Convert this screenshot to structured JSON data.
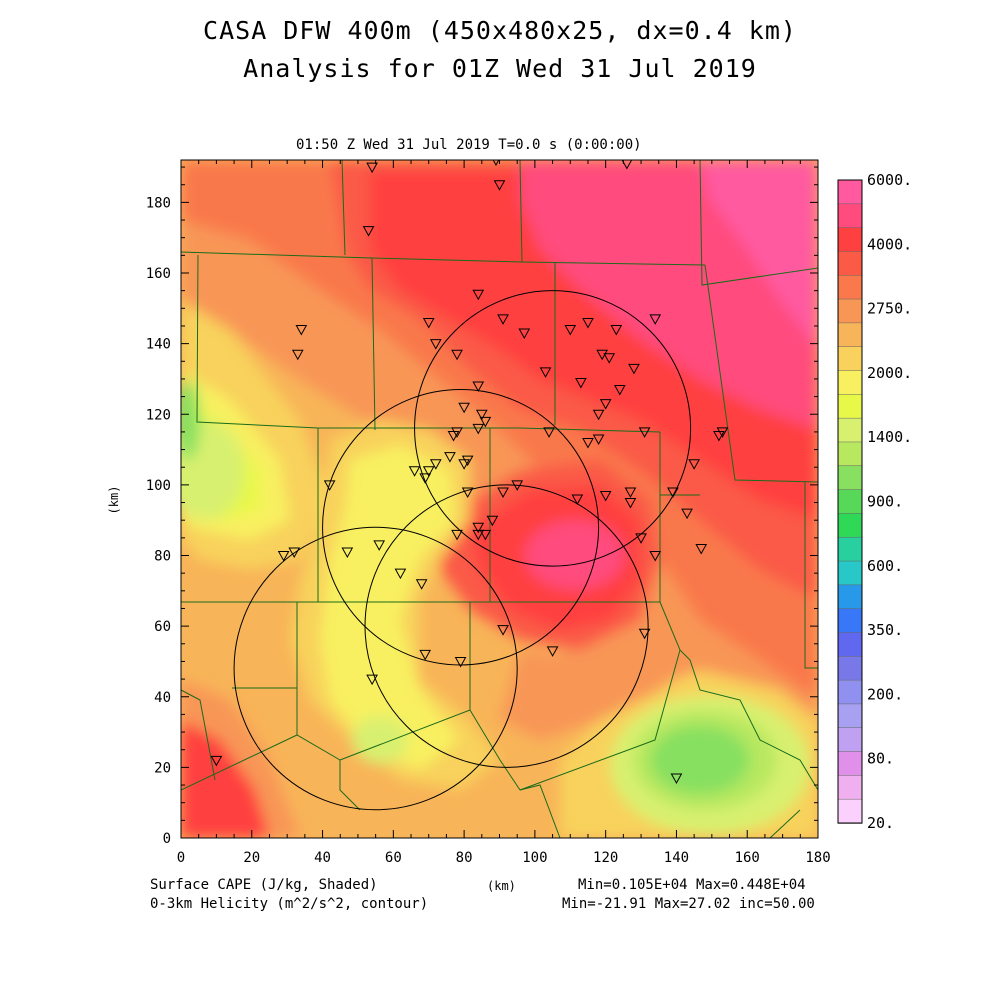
{
  "title_line1": "CASA DFW 400m (450x480x25, dx=0.4 km)",
  "title_line2": "Analysis for 01Z Wed 31 Jul 2019",
  "subtitle": "01:50 Z Wed 31 Jul 2019   T=0.0 s (0:00:00)",
  "axes": {
    "x_ticks": [
      "0",
      "20",
      "40",
      "60",
      "80",
      "100",
      "120",
      "140",
      "160",
      "180"
    ],
    "y_ticks": [
      "0",
      "20",
      "40",
      "60",
      "80",
      "100",
      "120",
      "140",
      "160",
      "180"
    ],
    "xlabel": "(km)",
    "ylabel": "(km)",
    "xlim": [
      0,
      180
    ],
    "ylim": [
      0,
      192
    ]
  },
  "colorbar": {
    "labels": [
      "6000.",
      "4000.",
      "2750.",
      "2000.",
      "1400.",
      "900.",
      "600.",
      "350.",
      "200.",
      "80.",
      "20."
    ],
    "colors_top_to_bottom": [
      "#ff5aa0",
      "#ff4b7d",
      "#ff4040",
      "#fa5a46",
      "#f9784c",
      "#f89656",
      "#f8b458",
      "#f8d25c",
      "#f8f060",
      "#e8f848",
      "#d8f070",
      "#b8e860",
      "#88e060",
      "#58d858",
      "#30d858",
      "#28d0a0",
      "#28c8c8",
      "#2898e8",
      "#3878f8",
      "#6068f0",
      "#7878e8",
      "#9090f0",
      "#a8a0f0",
      "#c0a0f0",
      "#e090e8",
      "#f0b0f0",
      "#fcd0fc"
    ]
  },
  "stations_km": [
    [
      54,
      190
    ],
    [
      89,
      192
    ],
    [
      90,
      185
    ],
    [
      126,
      191
    ],
    [
      53,
      172
    ],
    [
      34,
      144
    ],
    [
      33,
      137
    ],
    [
      70,
      146
    ],
    [
      72,
      140
    ],
    [
      78,
      137
    ],
    [
      84,
      154
    ],
    [
      91,
      147
    ],
    [
      97,
      143
    ],
    [
      103,
      132
    ],
    [
      110,
      144
    ],
    [
      115,
      146
    ],
    [
      123,
      144
    ],
    [
      119,
      137
    ],
    [
      121,
      136
    ],
    [
      128,
      133
    ],
    [
      134,
      147
    ],
    [
      113,
      129
    ],
    [
      124,
      127
    ],
    [
      120,
      123
    ],
    [
      118,
      120
    ],
    [
      84,
      128
    ],
    [
      80,
      122
    ],
    [
      85,
      120
    ],
    [
      86,
      118
    ],
    [
      84,
      116
    ],
    [
      78,
      115
    ],
    [
      77,
      114
    ],
    [
      76,
      108
    ],
    [
      72,
      106
    ],
    [
      70,
      104
    ],
    [
      69,
      102
    ],
    [
      66,
      104
    ],
    [
      81,
      107
    ],
    [
      80,
      106
    ],
    [
      42,
      100
    ],
    [
      104,
      115
    ],
    [
      115,
      112
    ],
    [
      118,
      113
    ],
    [
      131,
      115
    ],
    [
      153,
      115
    ],
    [
      152,
      114
    ],
    [
      145,
      106
    ],
    [
      139,
      98
    ],
    [
      120,
      97
    ],
    [
      127,
      98
    ],
    [
      127,
      95
    ],
    [
      112,
      96
    ],
    [
      91,
      98
    ],
    [
      95,
      100
    ],
    [
      81,
      98
    ],
    [
      88,
      90
    ],
    [
      84,
      88
    ],
    [
      86,
      86
    ],
    [
      84,
      86
    ],
    [
      78,
      86
    ],
    [
      130,
      85
    ],
    [
      147,
      82
    ],
    [
      143,
      92
    ],
    [
      134,
      80
    ],
    [
      29,
      80
    ],
    [
      32,
      81
    ],
    [
      47,
      81
    ],
    [
      56,
      83
    ],
    [
      62,
      75
    ],
    [
      68,
      72
    ],
    [
      91,
      59
    ],
    [
      131,
      58
    ],
    [
      69,
      52
    ],
    [
      79,
      50
    ],
    [
      105,
      53
    ],
    [
      54,
      45
    ],
    [
      10,
      22
    ],
    [
      140,
      17
    ]
  ],
  "radar_rings_km": [
    {
      "cx": 105,
      "cy": 116,
      "r": 39
    },
    {
      "cx": 79,
      "cy": 88,
      "r": 39
    },
    {
      "cx": 92,
      "cy": 60,
      "r": 40
    },
    {
      "cx": 55,
      "cy": 48,
      "r": 40
    }
  ],
  "footer_left_1": "Surface CAPE (J/kg, Shaded)",
  "footer_left_2": "0-3km Helicity (m^2/s^2, contour)",
  "footer_mid": "(km)",
  "footer_right_1": "Min=0.105E+04 Max=0.448E+04",
  "footer_right_2": "Min=-21.91 Max=27.02 inc=50.00"
}
